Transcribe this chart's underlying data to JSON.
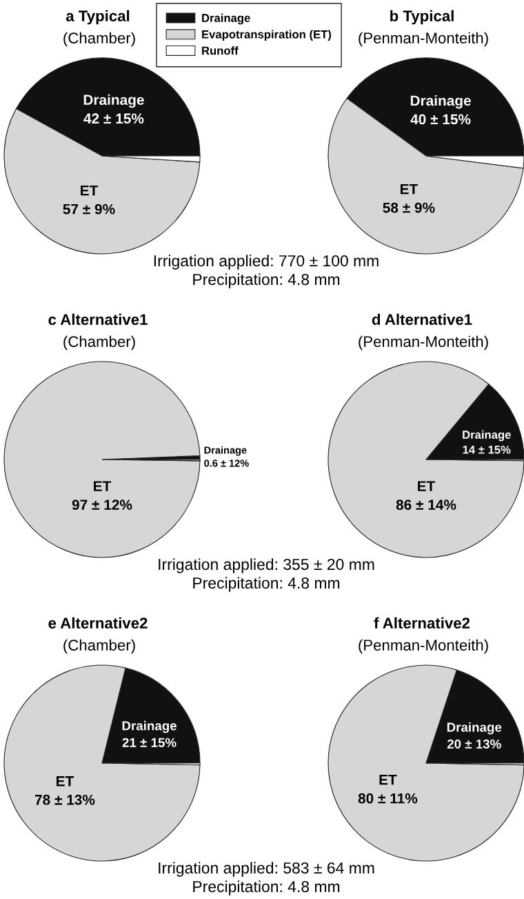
{
  "chart_data": [
    {
      "type": "pie",
      "title": "a Typical",
      "subtitle": "(Chamber)",
      "categories": [
        "Drainage",
        "Evapotranspiration (ET)",
        "Runoff"
      ],
      "values": [
        42,
        57,
        1
      ],
      "colors": [
        "#111111",
        "#d5d6d6",
        "#ffffff"
      ],
      "value_labels": [
        "Drainage\n42 ± 15%",
        "ET\n57 ± 9%",
        null
      ],
      "legend": "top right",
      "annotations": [
        "Irrigation applied: 770 ± 100 mm",
        "Precipitation: 4.8 mm"
      ]
    },
    {
      "type": "pie",
      "title": "b Typical",
      "subtitle": "(Penman-Monteith)",
      "categories": [
        null,
        null,
        null
      ],
      "values": [
        40,
        58,
        2
      ],
      "colors": [
        "#111111",
        "#d5d6d6",
        "#ffffff"
      ],
      "value_labels": [
        "Drainage\n40 ± 15%",
        "ET\n58 ± 9%",
        null
      ]
    },
    {
      "type": "pie",
      "title": "c Alternative1",
      "subtitle": "(Chamber)",
      "categories": [
        null,
        null,
        null
      ],
      "values": [
        0.6,
        97,
        0.2
      ],
      "colors": [
        "#111111",
        "#d5d6d6",
        "#ffffff"
      ],
      "value_labels": [
        "Drainage\n0.6 ± 12%",
        "ET\n97 ± 12%",
        null
      ],
      "annotations": [
        "Irrigation applied: 355 ± 20 mm",
        "Precipitation: 4.8 mm"
      ]
    },
    {
      "type": "pie",
      "title": "d Alternative1",
      "subtitle": "(Penman-Monteith)",
      "categories": [
        null,
        null,
        null
      ],
      "values": [
        14,
        86,
        0.2
      ],
      "colors": [
        "#111111",
        "#d5d6d6",
        "#ffffff"
      ],
      "value_labels": [
        "Drainage\n14 ± 15%",
        "ET\n86 ± 14%",
        null
      ]
    },
    {
      "type": "pie",
      "title": "e Alternative2",
      "subtitle": "(Chamber)",
      "categories": [
        null,
        null,
        null
      ],
      "values": [
        21,
        78,
        0.3
      ],
      "colors": [
        "#111111",
        "#d5d6d6",
        "#ffffff"
      ],
      "value_labels": [
        "Drainage\n21 ± 15%",
        "ET\n78 ± 13%",
        null
      ],
      "annotations": [
        "Irrigation applied: 583 ± 64 mm",
        "Precipitation: 4.8 mm"
      ]
    },
    {
      "type": "pie",
      "title": "f Alternative2",
      "subtitle": "(Penman-Monteith)",
      "categories": [
        null,
        null,
        null
      ],
      "values": [
        20,
        80,
        0.3
      ],
      "colors": [
        "#111111",
        "#d5d6d6",
        "#ffffff"
      ],
      "value_labels": [
        "Drainage\n20 ± 13%",
        "ET\n80 ± 11%",
        null
      ]
    }
  ]
}
